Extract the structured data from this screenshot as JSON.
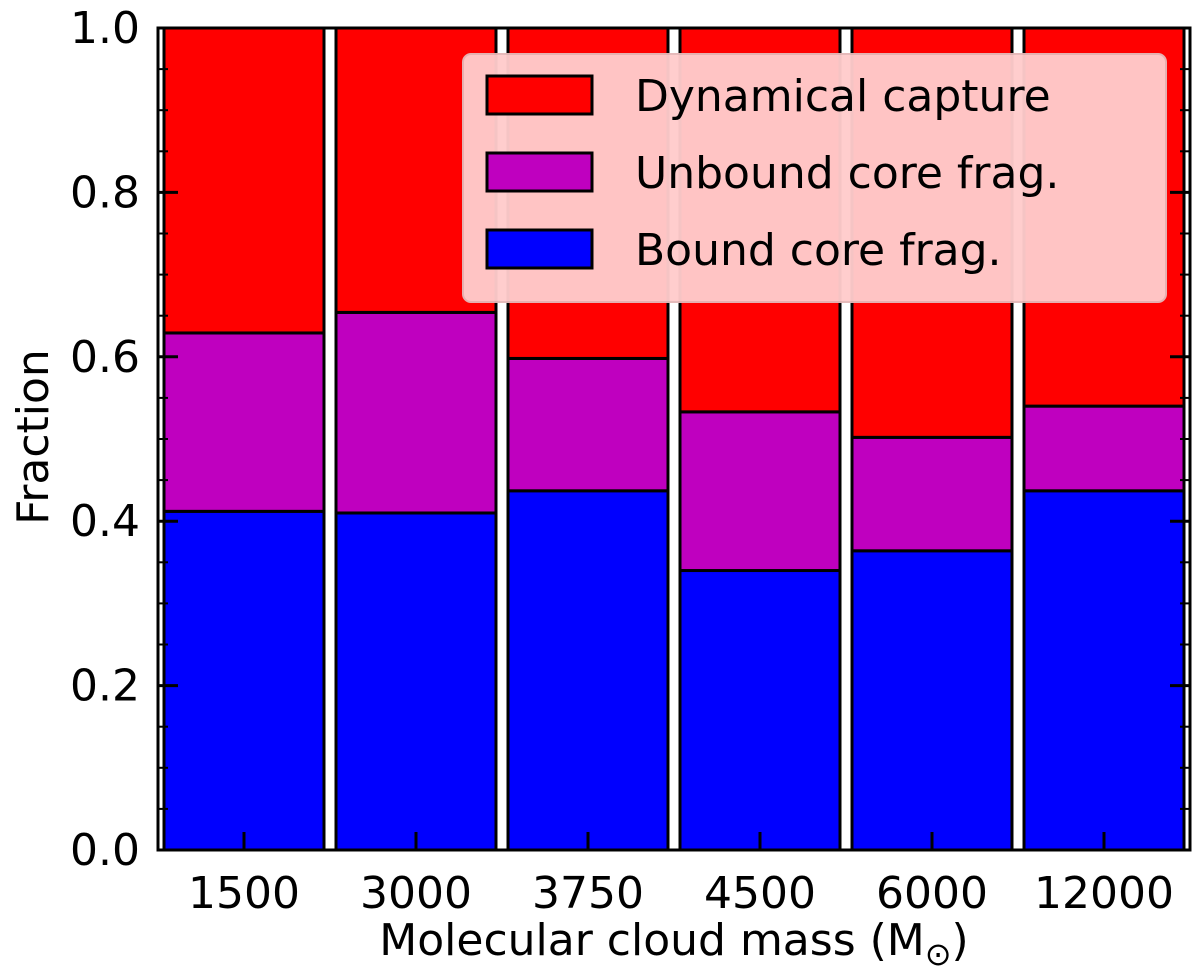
{
  "chart_data": {
    "type": "bar",
    "stacked": true,
    "categories": [
      "1500",
      "3000",
      "3750",
      "4500",
      "6000",
      "12000"
    ],
    "series": [
      {
        "name": "Bound core frag.",
        "color": "#0000ff",
        "values": [
          0.412,
          0.41,
          0.437,
          0.34,
          0.364,
          0.437
        ]
      },
      {
        "name": "Unbound core frag.",
        "color": "#bf00bf",
        "values": [
          0.217,
          0.244,
          0.161,
          0.193,
          0.138,
          0.103
        ]
      },
      {
        "name": "Dynamical capture",
        "color": "#ff0000",
        "values": [
          0.371,
          0.346,
          0.402,
          0.467,
          0.498,
          0.46
        ]
      }
    ],
    "legend_order": [
      "Dynamical capture",
      "Unbound core frag.",
      "Bound core frag."
    ],
    "legend_position": "top-right",
    "xlabel_text": "Molecular cloud mass (M",
    "xlabel_symbol": "⊙",
    "xlabel_close": ")",
    "ylabel": "Fraction",
    "ylim": [
      0.0,
      1.0
    ],
    "yticks": [
      "0.0",
      "0.2",
      "0.4",
      "0.6",
      "0.8",
      "1.0"
    ],
    "grid": false
  }
}
